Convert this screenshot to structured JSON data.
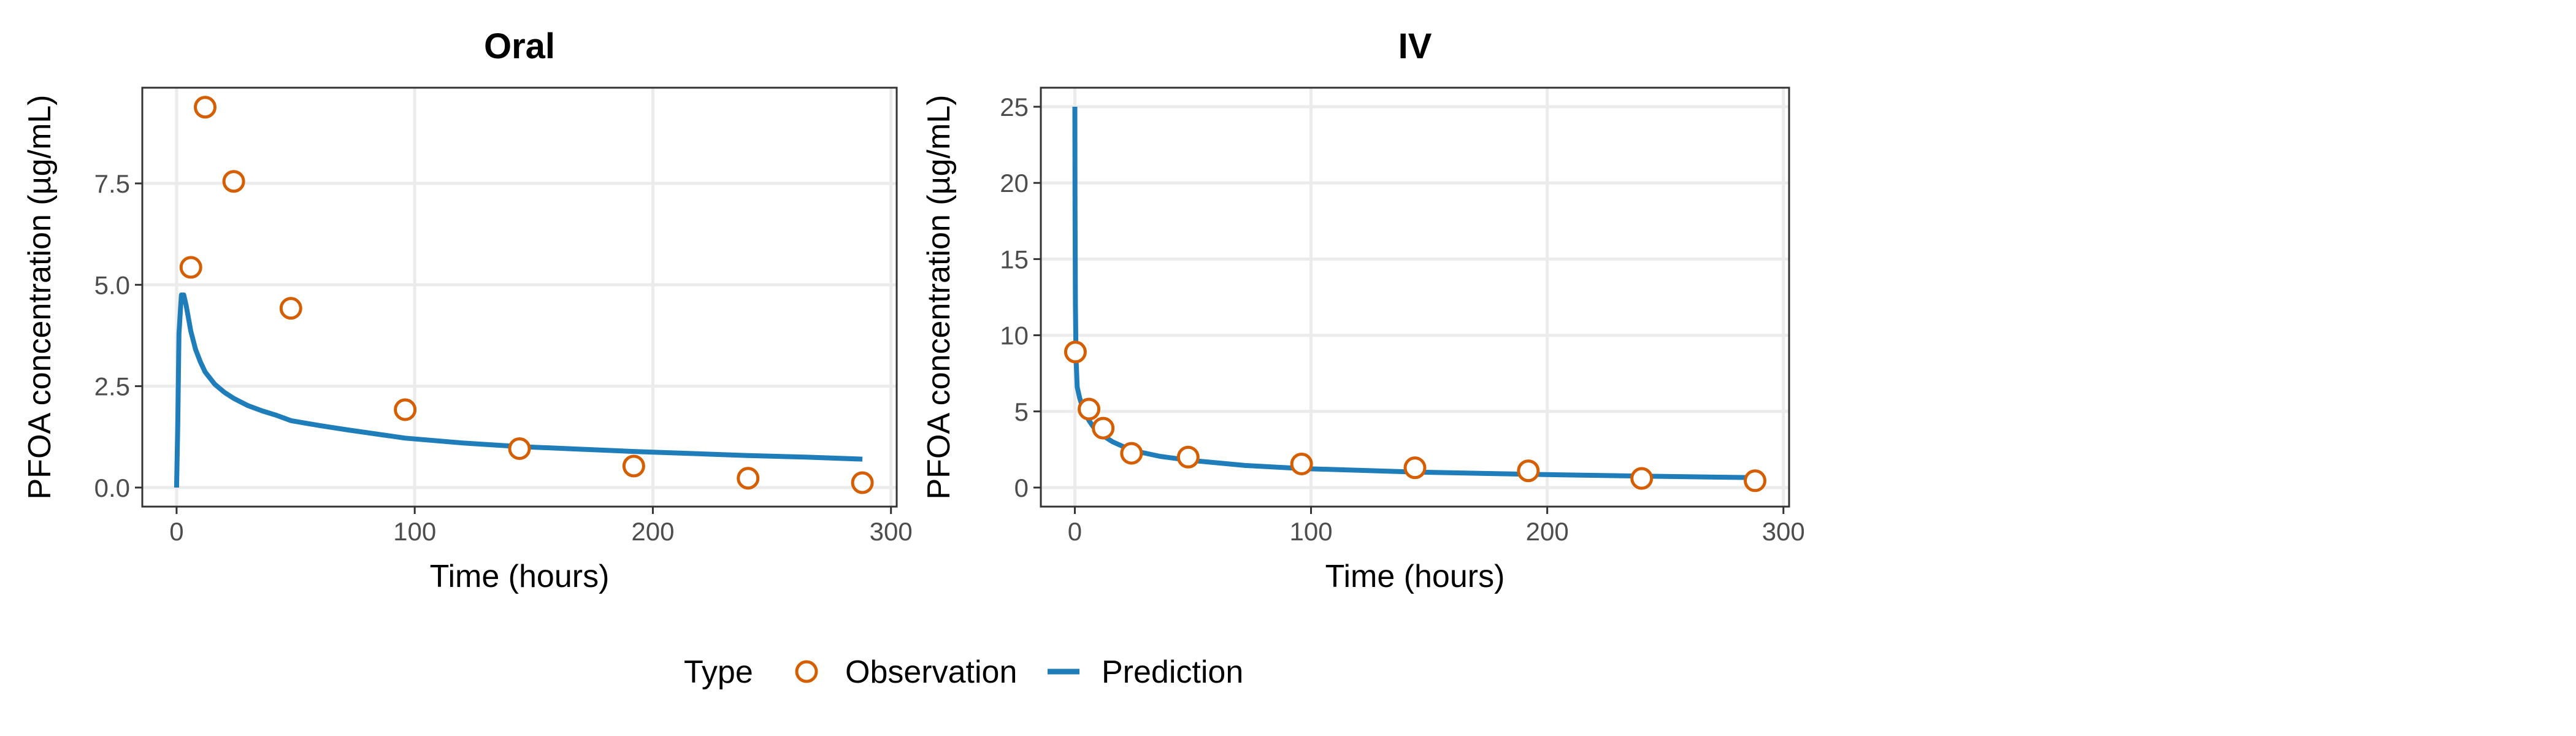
{
  "figure": {
    "legend_title": "Type",
    "legend_position": "bottom",
    "legend_entries": [
      {
        "label": "Observation",
        "kind": "point"
      },
      {
        "label": "Prediction",
        "kind": "line"
      }
    ]
  },
  "colors": {
    "observation": "#D55E00",
    "prediction": "#1F7DBA",
    "grid": "#EBEBEB",
    "axis_text": "#4D4D4D",
    "panel_border": "#333333"
  },
  "chart_data": [
    {
      "type": "line",
      "title": "Oral",
      "xlabel": "Time (hours)",
      "ylabel": "PFOA concentration (µg/mL)",
      "xlim": [
        -14.4,
        302.4
      ],
      "ylim": [
        -0.47,
        9.86
      ],
      "x_ticks": [
        0,
        100,
        200,
        300
      ],
      "x_tick_labels": [
        "0",
        "100",
        "200",
        "300"
      ],
      "y_ticks": [
        0,
        2.5,
        5,
        7.5
      ],
      "y_tick_labels": [
        "0.0",
        "2.5",
        "5.0",
        "7.5"
      ],
      "grid": true,
      "series": [
        {
          "name": "Observation",
          "kind": "point",
          "x": [
            6,
            12,
            24,
            48,
            96,
            144,
            192,
            240,
            288
          ],
          "y": [
            5.43,
            9.38,
            7.55,
            4.42,
            1.92,
            0.96,
            0.53,
            0.23,
            0.12
          ]
        },
        {
          "name": "Prediction",
          "kind": "line",
          "x": [
            0,
            0.5,
            1,
            2,
            3,
            4,
            6,
            8,
            10,
            12,
            16,
            20,
            24,
            30,
            36,
            42,
            48,
            60,
            72,
            96,
            120,
            144,
            168,
            192,
            216,
            240,
            264,
            288
          ],
          "y": [
            0,
            1.6,
            3.8,
            4.75,
            4.75,
            4.5,
            3.85,
            3.4,
            3.1,
            2.85,
            2.55,
            2.35,
            2.2,
            2.02,
            1.89,
            1.78,
            1.65,
            1.53,
            1.42,
            1.22,
            1.1,
            1.01,
            0.95,
            0.89,
            0.84,
            0.79,
            0.75,
            0.7
          ]
        }
      ]
    },
    {
      "type": "line",
      "title": "IV",
      "xlabel": "Time (hours)",
      "ylabel": "PFOA concentration (µg/mL)",
      "xlim": [
        -14.4,
        302.4
      ],
      "ylim": [
        -1.25,
        26.25
      ],
      "x_ticks": [
        0,
        100,
        200,
        300
      ],
      "x_tick_labels": [
        "0",
        "100",
        "200",
        "300"
      ],
      "y_ticks": [
        0,
        5,
        10,
        15,
        20,
        25
      ],
      "y_tick_labels": [
        "0",
        "5",
        "10",
        "15",
        "20",
        "25"
      ],
      "grid": true,
      "series": [
        {
          "name": "Observation",
          "kind": "point",
          "x": [
            0.25,
            6,
            12,
            24,
            48,
            96,
            144,
            192,
            240,
            288
          ],
          "y": [
            8.9,
            5.15,
            3.9,
            2.25,
            2.0,
            1.55,
            1.3,
            1.1,
            0.6,
            0.45
          ]
        },
        {
          "name": "Prediction",
          "kind": "line",
          "x": [
            0,
            0.1,
            0.25,
            0.5,
            1,
            2,
            3,
            4,
            6,
            8,
            12,
            16,
            24,
            36,
            48,
            72,
            96,
            144,
            192,
            240,
            288
          ],
          "y": [
            25,
            18,
            12,
            8.5,
            6.6,
            5.9,
            5.4,
            5.0,
            4.4,
            3.95,
            3.4,
            3.0,
            2.45,
            2.05,
            1.8,
            1.45,
            1.25,
            1.02,
            0.87,
            0.75,
            0.65
          ]
        }
      ]
    }
  ]
}
